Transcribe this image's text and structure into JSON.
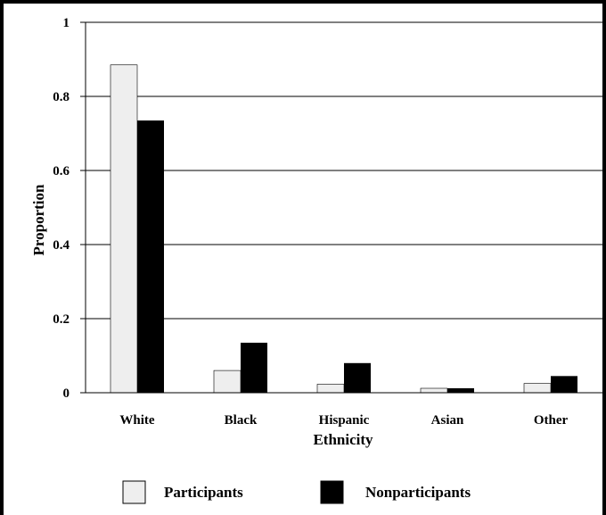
{
  "chart_data": {
    "type": "bar",
    "categories": [
      "White",
      "Black",
      "Hispanic",
      "Asian",
      "Other"
    ],
    "series": [
      {
        "name": "Participants",
        "values": [
          0.885,
          0.06,
          0.023,
          0.012,
          0.025
        ],
        "color": "#eeeeee"
      },
      {
        "name": "Nonparticipants",
        "values": [
          0.735,
          0.135,
          0.08,
          0.012,
          0.045
        ],
        "color": "#000000"
      }
    ],
    "title": "",
    "xlabel": "Ethnicity",
    "ylabel": "Proportion",
    "ylim": [
      0,
      1
    ],
    "yticks": [
      0,
      0.2,
      0.4,
      0.6,
      0.8,
      1
    ],
    "ytick_labels": [
      "0",
      "0.2",
      "0.4",
      "0.6",
      "0.8",
      "1"
    ],
    "grid": true,
    "legend_position": "bottom"
  }
}
